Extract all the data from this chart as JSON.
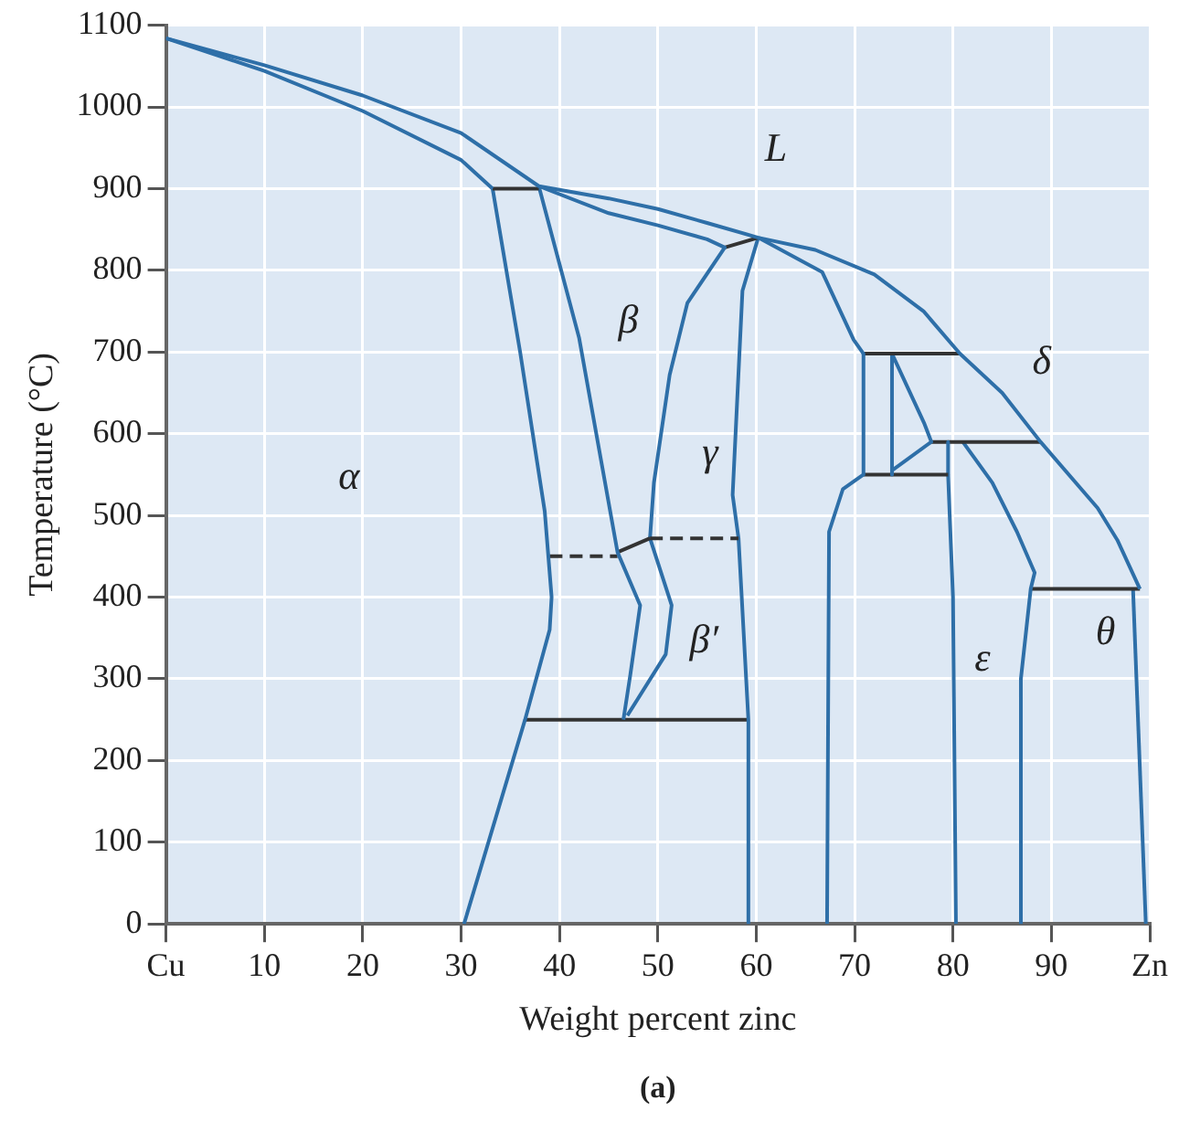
{
  "chart_data": {
    "type": "line",
    "xlabel": "Weight percent zinc",
    "ylabel": "Temperature (°C)",
    "xlim": [
      0,
      100
    ],
    "xticks": [
      {
        "value": 0,
        "label": "Cu"
      },
      10,
      20,
      30,
      40,
      50,
      60,
      70,
      80,
      90,
      {
        "value": 100,
        "label": "Zn"
      }
    ],
    "ylim": [
      0,
      1100
    ],
    "yticks": [
      0,
      100,
      200,
      300,
      400,
      500,
      600,
      700,
      800,
      900,
      1000,
      1100
    ],
    "grid": true,
    "legend": false,
    "marker": "none",
    "annotations": [
      "L",
      "β",
      "α",
      "γ",
      "δ",
      "β′",
      "ε",
      "θ",
      "(a)"
    ],
    "series": [
      {
        "color": "#2e6fa8",
        "x": [
          0,
          10,
          20,
          30,
          37.9,
          45,
          50,
          55,
          60.2,
          66,
          72,
          77,
          80.7,
          85,
          88.9,
          94.7,
          96.7,
          99
        ],
        "values": [
          1084,
          1051,
          1014,
          968,
          903,
          888,
          875,
          858,
          840,
          825,
          795,
          750,
          698,
          650,
          590,
          509,
          470,
          410
        ]
      },
      {
        "color": "#2e6fa8",
        "x": [
          0,
          10,
          20,
          30,
          33.2
        ],
        "values": [
          1084,
          1044,
          995,
          935,
          900
        ]
      },
      {
        "color": "#333333",
        "x": [
          33.2,
          37.9
        ],
        "values": [
          900,
          900
        ]
      },
      {
        "color": "#2e6fa8",
        "x": [
          33.2,
          36,
          38.5,
          39.2,
          39,
          36.5,
          30.3
        ],
        "values": [
          900,
          700,
          505,
          400,
          360,
          250,
          0
        ]
      },
      {
        "color": "#2e6fa8",
        "x": [
          37.9,
          42,
          45.9,
          48.2,
          47.2,
          46.5
        ],
        "values": [
          903,
          717,
          455,
          390,
          305,
          250
        ]
      },
      {
        "color": "#333333",
        "line_style": "dashed",
        "x": [
          39,
          45.9
        ],
        "values": [
          450,
          450
        ]
      },
      {
        "color": "#333333",
        "x": [
          45.9,
          49.2
        ],
        "values": [
          455,
          472
        ]
      },
      {
        "color": "#333333",
        "line_style": "dashed",
        "x": [
          49.2,
          58.2
        ],
        "values": [
          472,
          472
        ]
      },
      {
        "color": "#2e6fa8",
        "x": [
          37.9,
          45,
          50,
          55,
          56.8,
          53,
          51.2,
          49.6,
          49.2,
          51.4,
          50.8,
          46.9
        ],
        "values": [
          903,
          870,
          855,
          838,
          828,
          760,
          672,
          540,
          472,
          390,
          330,
          255
        ]
      },
      {
        "color": "#333333",
        "x": [
          56.8,
          60.2
        ],
        "values": [
          828,
          840
        ]
      },
      {
        "color": "#2e6fa8",
        "x": [
          60.2,
          58.6,
          57.6,
          58.2,
          59.2,
          59.2
        ],
        "values": [
          840,
          775,
          525,
          472,
          250,
          0
        ]
      },
      {
        "color": "#333333",
        "x": [
          36.5,
          59.2
        ],
        "values": [
          250,
          250
        ]
      },
      {
        "color": "#2e6fa8",
        "x": [
          60.2,
          66.7,
          69.9,
          70.9
        ],
        "values": [
          840,
          798,
          715,
          698
        ]
      },
      {
        "color": "#2e6fa8",
        "x": [
          70.9,
          70.9,
          68.8,
          67.4,
          67.2
        ],
        "values": [
          698,
          550,
          532,
          480,
          0
        ]
      },
      {
        "color": "#333333",
        "x": [
          70.9,
          80.7
        ],
        "values": [
          698,
          698
        ]
      },
      {
        "color": "#2e6fa8",
        "x": [
          73.8,
          73.8
        ],
        "values": [
          698,
          550
        ]
      },
      {
        "color": "#2e6fa8",
        "x": [
          73.8,
          77.1,
          77.8,
          73.8
        ],
        "values": [
          698,
          612,
          590,
          555
        ]
      },
      {
        "color": "#333333",
        "x": [
          70.9,
          79.5
        ],
        "values": [
          550,
          550
        ]
      },
      {
        "color": "#2e6fa8",
        "x": [
          79.5,
          79.5,
          80,
          80.3
        ],
        "values": [
          590,
          550,
          400,
          0
        ]
      },
      {
        "color": "#333333",
        "x": [
          77.8,
          88.9
        ],
        "values": [
          590,
          590
        ]
      },
      {
        "color": "#2e6fa8",
        "x": [
          81,
          84,
          86.5,
          88.3,
          87.9,
          86.9,
          86.9
        ],
        "values": [
          590,
          540,
          480,
          430,
          410,
          300,
          0
        ]
      },
      {
        "color": "#333333",
        "x": [
          87.9,
          99
        ],
        "values": [
          410,
          410
        ]
      },
      {
        "color": "#2e6fa8",
        "x": [
          98.3,
          99.6
        ],
        "values": [
          410,
          0
        ]
      }
    ]
  }
}
